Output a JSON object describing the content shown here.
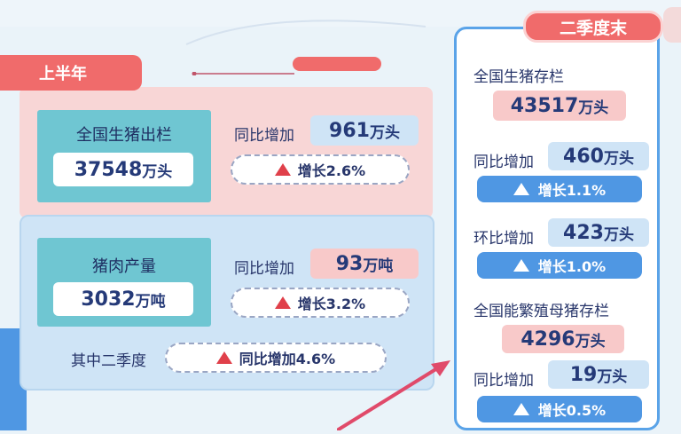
{
  "h1": {
    "tab": "上半年",
    "slaughter": {
      "label": "全国生猪出栏",
      "value": "37548",
      "unit": "万头",
      "yoy_label": "同比增加",
      "yoy_value": "961",
      "yoy_unit": "万头",
      "growth": "增长2.6%"
    },
    "pork": {
      "label": "猪肉产量",
      "value": "3032",
      "unit": "万吨",
      "yoy_label": "同比增加",
      "yoy_value": "93",
      "yoy_unit": "万吨",
      "growth": "增长3.2%",
      "q2_label": "其中二季度",
      "q2_growth": "同比增加4.6%"
    }
  },
  "q2": {
    "tab": "二季度末",
    "stock_label": "全国生猪存栏",
    "stock_value": "43517",
    "stock_unit": "万头",
    "yoy_label": "同比增加",
    "yoy_value": "460",
    "yoy_unit": "万头",
    "yoy_growth": "增长1.1%",
    "qoq_label": "环比增加",
    "qoq_value": "423",
    "qoq_unit": "万头",
    "qoq_growth": "增长1.0%",
    "sow_label": "全国能繁殖母猪存栏",
    "sow_value": "4296",
    "sow_unit": "万头",
    "sow_yoy_label": "同比增加",
    "sow_yoy_value": "19",
    "sow_yoy_unit": "万头",
    "sow_growth": "增长0.5%"
  },
  "colors": {
    "pink": "#f8d6d6",
    "tab_red": "#f06b6b",
    "teal": "#6fc6d2",
    "blue_accent": "#4f97e3",
    "right_panel_border": "#5aa3e8"
  }
}
